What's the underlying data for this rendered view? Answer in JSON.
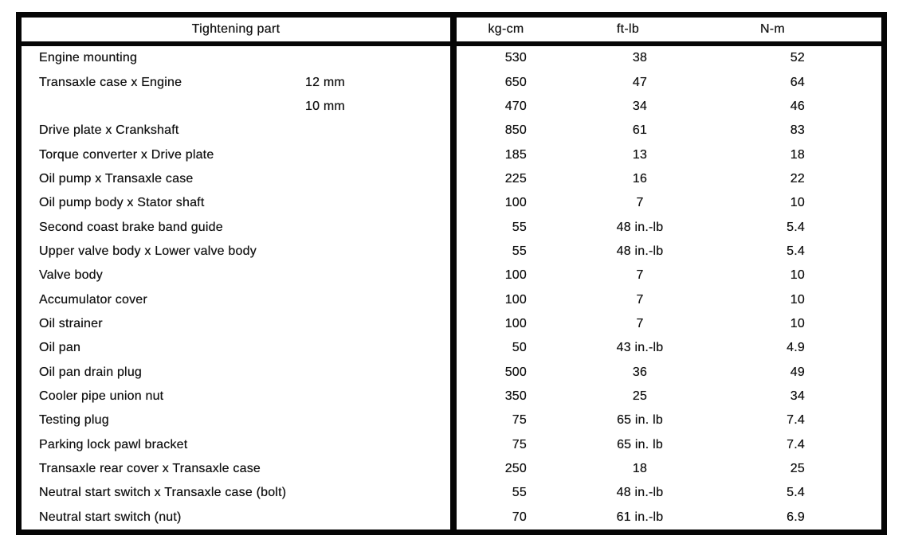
{
  "page": {
    "background_color": "#ffffff",
    "ink_color": "#111111",
    "border_color": "#060606"
  },
  "table": {
    "header": {
      "part_col": "Tightening part",
      "unit_cols": [
        "kg-cm",
        "ft-lb",
        "N-m"
      ]
    },
    "rows": [
      {
        "part": "Engine mounting",
        "size": "",
        "kg_cm": "530",
        "ft_lb": "38",
        "n_m": "52"
      },
      {
        "part": "Transaxle case x Engine",
        "size": "12 mm",
        "kg_cm": "650",
        "ft_lb": "47",
        "n_m": "64"
      },
      {
        "part": "",
        "size": "10 mm",
        "kg_cm": "470",
        "ft_lb": "34",
        "n_m": "46"
      },
      {
        "part": "Drive plate x Crankshaft",
        "size": "",
        "kg_cm": "850",
        "ft_lb": "61",
        "n_m": "83"
      },
      {
        "part": "Torque converter x Drive plate",
        "size": "",
        "kg_cm": "185",
        "ft_lb": "13",
        "n_m": "18"
      },
      {
        "part": "Oil pump x Transaxle case",
        "size": "",
        "kg_cm": "225",
        "ft_lb": "16",
        "n_m": "22"
      },
      {
        "part": "Oil pump body x Stator shaft",
        "size": "",
        "kg_cm": "100",
        "ft_lb": "7",
        "n_m": "10"
      },
      {
        "part": "Second coast brake band guide",
        "size": "",
        "kg_cm": "55",
        "ft_lb": "48 in.-lb",
        "n_m": "5.4"
      },
      {
        "part": "Upper valve body x Lower valve body",
        "size": "",
        "kg_cm": "55",
        "ft_lb": "48 in.-lb",
        "n_m": "5.4"
      },
      {
        "part": "Valve body",
        "size": "",
        "kg_cm": "100",
        "ft_lb": "7",
        "n_m": "10"
      },
      {
        "part": "Accumulator cover",
        "size": "",
        "kg_cm": "100",
        "ft_lb": "7",
        "n_m": "10"
      },
      {
        "part": "Oil strainer",
        "size": "",
        "kg_cm": "100",
        "ft_lb": "7",
        "n_m": "10"
      },
      {
        "part": "Oil pan",
        "size": "",
        "kg_cm": "50",
        "ft_lb": "43 in.-lb",
        "n_m": "4.9"
      },
      {
        "part": "Oil pan drain plug",
        "size": "",
        "kg_cm": "500",
        "ft_lb": "36",
        "n_m": "49"
      },
      {
        "part": "Cooler pipe union nut",
        "size": "",
        "kg_cm": "350",
        "ft_lb": "25",
        "n_m": "34"
      },
      {
        "part": "Testing plug",
        "size": "",
        "kg_cm": "75",
        "ft_lb": "65 in. lb",
        "n_m": "7.4"
      },
      {
        "part": "Parking lock pawl bracket",
        "size": "",
        "kg_cm": "75",
        "ft_lb": "65 in. lb",
        "n_m": "7.4"
      },
      {
        "part": "Transaxle rear cover x Transaxle case",
        "size": "",
        "kg_cm": "250",
        "ft_lb": "18",
        "n_m": "25"
      },
      {
        "part": "Neutral start switch x Transaxle case (bolt)",
        "size": "",
        "kg_cm": "55",
        "ft_lb": "48 in.-lb",
        "n_m": "5.4"
      },
      {
        "part": "Neutral start switch (nut)",
        "size": "",
        "kg_cm": "70",
        "ft_lb": "61 in.-lb",
        "n_m": "6.9"
      }
    ]
  }
}
